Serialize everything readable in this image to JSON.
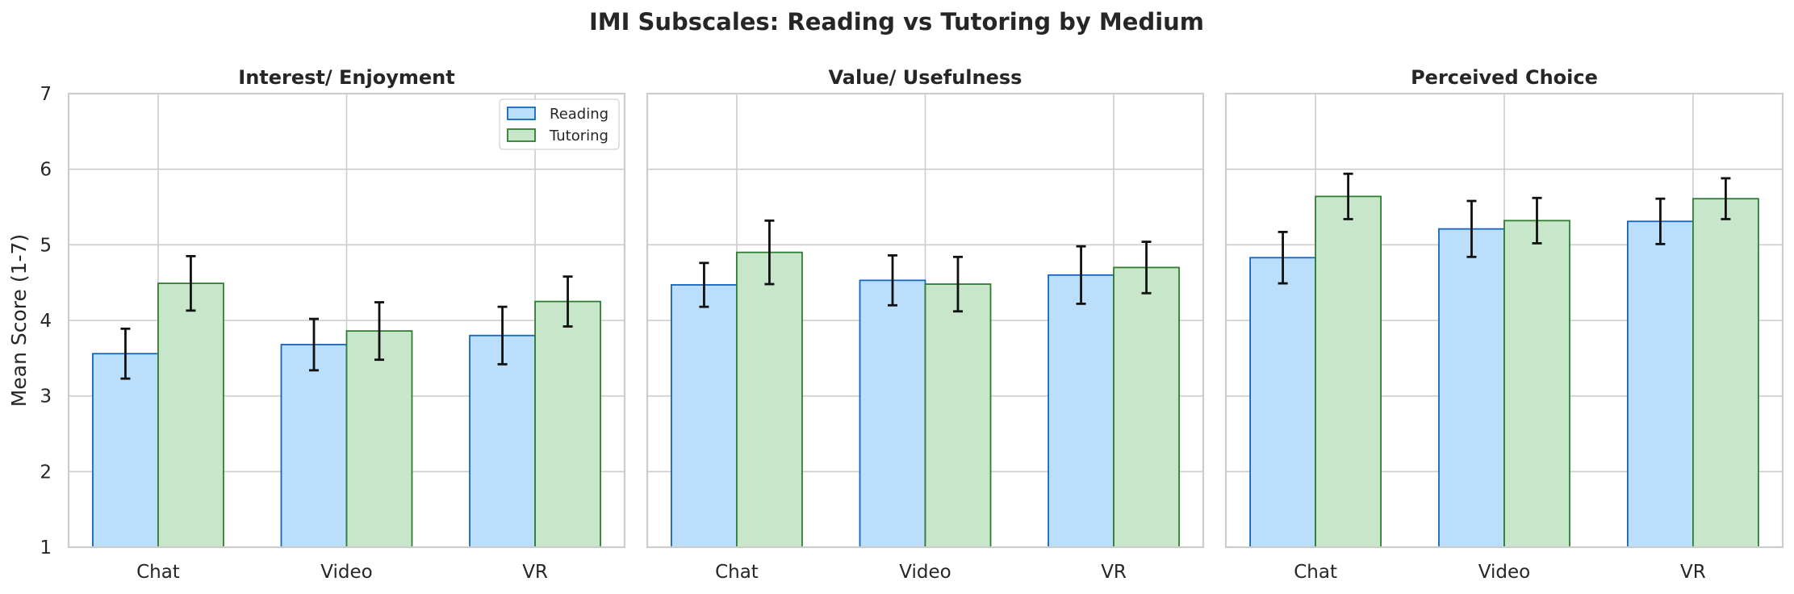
{
  "figure": {
    "title": "IMI Subscales: Reading vs Tutoring by Medium"
  },
  "colors": {
    "reading_fill": "#bbdefb",
    "reading_edge": "#1565c0",
    "tutoring_fill": "#c8e6c9",
    "tutoring_edge": "#2e7d32",
    "grid": "#cccccc",
    "error_bar": "#111111"
  },
  "chart_data": [
    {
      "type": "bar",
      "title": "Interest/ Enjoyment",
      "categories": [
        "Chat",
        "Video",
        "VR"
      ],
      "ylabel": "Mean Score (1-7)",
      "ylim": [
        1,
        7
      ],
      "yticks": [
        1,
        2,
        3,
        4,
        5,
        6,
        7
      ],
      "grid": true,
      "legend": "top-right",
      "series": [
        {
          "name": "Reading",
          "values": [
            3.56,
            3.68,
            3.8
          ],
          "errors": [
            0.33,
            0.34,
            0.38
          ]
        },
        {
          "name": "Tutoring",
          "values": [
            4.49,
            3.86,
            4.25
          ],
          "errors": [
            0.36,
            0.38,
            0.33
          ]
        }
      ]
    },
    {
      "type": "bar",
      "title": "Value/ Usefulness",
      "categories": [
        "Chat",
        "Video",
        "VR"
      ],
      "ylim": [
        1,
        7
      ],
      "grid": true,
      "series": [
        {
          "name": "Reading",
          "values": [
            4.47,
            4.53,
            4.6
          ],
          "errors": [
            0.29,
            0.33,
            0.38
          ]
        },
        {
          "name": "Tutoring",
          "values": [
            4.9,
            4.48,
            4.7
          ],
          "errors": [
            0.42,
            0.36,
            0.34
          ]
        }
      ]
    },
    {
      "type": "bar",
      "title": "Perceived Choice",
      "categories": [
        "Chat",
        "Video",
        "VR"
      ],
      "ylim": [
        1,
        7
      ],
      "grid": true,
      "series": [
        {
          "name": "Reading",
          "values": [
            4.83,
            5.21,
            5.31
          ],
          "errors": [
            0.34,
            0.37,
            0.3
          ]
        },
        {
          "name": "Tutoring",
          "values": [
            5.64,
            5.32,
            5.61
          ],
          "errors": [
            0.3,
            0.3,
            0.27
          ]
        }
      ]
    }
  ]
}
